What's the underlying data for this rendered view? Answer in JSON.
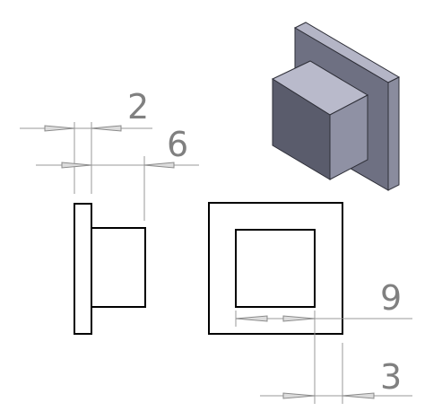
{
  "dimensions": {
    "flange_thickness": "2",
    "boss_length": "6",
    "boss_width": "9",
    "wall_thickness": "3"
  },
  "colors": {
    "dimension_text": "#808080",
    "dimension_line": "#9a9a9a",
    "arrow_fill": "#dcdcdc",
    "model_edge": "#000000",
    "iso_face_top": "#b4b5c6",
    "iso_face_right": "#8a8c9e",
    "iso_face_front": "#5d5f70",
    "iso_face_dark": "#4a4c5a"
  }
}
